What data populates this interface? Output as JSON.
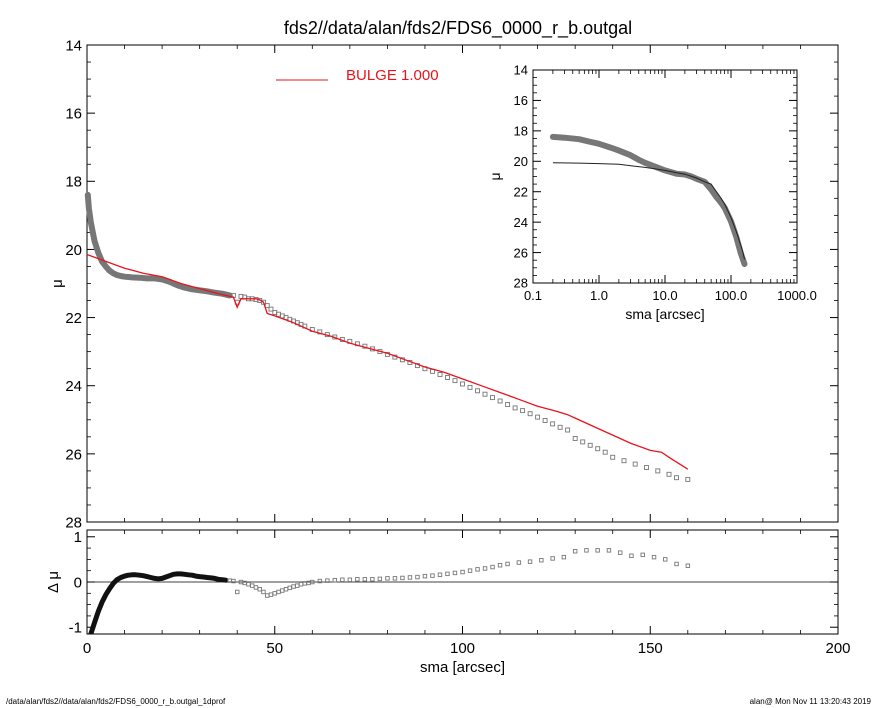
{
  "title": "fds2//data/alan/fds2/FDS6_0000_r_b.outgal",
  "footer_left": "/data/alan/fds2//data/alan/fds2/FDS6_0000_r_b.outgal_1dprof",
  "footer_right": "alan@  Mon Nov 11 13:20:43 2019",
  "colors": {
    "model": "#e8141c",
    "data": "#777777",
    "axis": "#000000"
  },
  "chart_data": [
    {
      "type": "scatter",
      "name": "main-profile",
      "xlabel": "",
      "ylabel": "μ",
      "xlim": [
        0,
        200
      ],
      "ylim": [
        28,
        14
      ],
      "xticks": [
        0,
        50,
        100,
        150,
        200
      ],
      "yticks": [
        14,
        16,
        18,
        20,
        22,
        24,
        26,
        28
      ],
      "legend": {
        "label": "BULGE  1.000",
        "placement": "top-center"
      },
      "series": [
        {
          "name": "BULGE  1.000",
          "style": "line",
          "x": [
            0,
            5,
            10,
            15,
            20,
            25,
            30,
            35,
            39,
            40,
            41,
            45,
            46,
            47,
            48,
            50,
            55,
            60,
            65,
            70,
            75,
            80,
            85,
            90,
            95,
            100,
            105,
            110,
            115,
            120,
            125,
            128,
            130,
            135,
            140,
            145,
            150,
            153,
            155,
            160
          ],
          "y": [
            20.15,
            20.35,
            20.55,
            20.7,
            20.8,
            21.0,
            21.15,
            21.3,
            21.4,
            21.7,
            21.45,
            21.45,
            21.48,
            21.55,
            21.88,
            21.95,
            22.15,
            22.4,
            22.55,
            22.75,
            22.9,
            23.05,
            23.25,
            23.45,
            23.6,
            23.8,
            24.0,
            24.2,
            24.4,
            24.6,
            24.75,
            24.85,
            24.95,
            25.2,
            25.45,
            25.7,
            25.9,
            25.95,
            26.1,
            26.45
          ]
        },
        {
          "name": "",
          "style": "dense-markers",
          "x": [
            0.2,
            0.5,
            1,
            2,
            3,
            4,
            5,
            6,
            7,
            8,
            9,
            10,
            12,
            14,
            16,
            18,
            20,
            22,
            24,
            26,
            28,
            30,
            32,
            34,
            36,
            38
          ],
          "y": [
            18.4,
            18.8,
            19.2,
            19.75,
            20.1,
            20.35,
            20.5,
            20.62,
            20.7,
            20.75,
            20.78,
            20.8,
            20.82,
            20.83,
            20.85,
            20.85,
            20.88,
            20.95,
            21.05,
            21.12,
            21.17,
            21.2,
            21.23,
            21.27,
            21.3,
            21.35
          ]
        },
        {
          "name": "",
          "style": "markers",
          "x": [
            39,
            40,
            41,
            42,
            43,
            44,
            45,
            46,
            47,
            48,
            49,
            50,
            51,
            52,
            53,
            54,
            55,
            56,
            57,
            58,
            60,
            62,
            64,
            66,
            68,
            70,
            72,
            74,
            76,
            78,
            80,
            82,
            84,
            86,
            88,
            90,
            92,
            94,
            96,
            98,
            100,
            102,
            104,
            106,
            108,
            110,
            112,
            114,
            116,
            118,
            120,
            122,
            124,
            126,
            128,
            130,
            132,
            134,
            136,
            138,
            140,
            143,
            146,
            149,
            152,
            155,
            157,
            160
          ],
          "y": [
            21.35,
            21.55,
            21.38,
            21.4,
            21.45,
            21.45,
            21.47,
            21.5,
            21.55,
            21.65,
            21.75,
            21.85,
            21.9,
            21.95,
            22.0,
            22.05,
            22.1,
            22.15,
            22.2,
            22.25,
            22.35,
            22.42,
            22.5,
            22.57,
            22.64,
            22.7,
            22.77,
            22.84,
            22.92,
            23.0,
            23.08,
            23.16,
            23.24,
            23.32,
            23.41,
            23.5,
            23.58,
            23.67,
            23.76,
            23.85,
            23.95,
            24.05,
            24.15,
            24.25,
            24.35,
            24.45,
            24.55,
            24.65,
            24.73,
            24.82,
            24.92,
            25.02,
            25.12,
            25.22,
            25.3,
            25.55,
            25.65,
            25.75,
            25.85,
            25.95,
            26.1,
            26.2,
            26.3,
            26.4,
            26.5,
            26.6,
            26.7,
            26.75
          ]
        }
      ]
    },
    {
      "type": "scatter",
      "name": "inset-log-profile",
      "xlabel": "sma [arcsec]",
      "ylabel": "μ",
      "xscale": "log",
      "xlim": [
        0.1,
        1000
      ],
      "ylim": [
        28,
        14
      ],
      "xtick_labels": [
        "0.1",
        "1.0",
        "10.0",
        "100.0",
        "1000.0"
      ],
      "yticks": [
        14,
        16,
        18,
        20,
        22,
        24,
        26,
        28
      ],
      "series": [
        {
          "name": "",
          "style": "line",
          "x": [
            0.2,
            0.5,
            1,
            2,
            5,
            10,
            15,
            20,
            30,
            40,
            50,
            60,
            70,
            80,
            100,
            120,
            150,
            160
          ],
          "y": [
            20.1,
            20.12,
            20.15,
            20.2,
            20.4,
            20.6,
            20.75,
            20.85,
            21.1,
            21.35,
            21.5,
            22.0,
            22.4,
            22.8,
            23.7,
            24.6,
            25.9,
            26.45
          ]
        },
        {
          "name": "",
          "style": "dense-markers",
          "x": [
            0.2,
            0.3,
            0.5,
            0.7,
            1,
            1.5,
            2,
            3,
            4,
            5,
            7,
            10,
            15,
            20,
            25,
            30,
            40,
            50,
            60,
            70,
            80,
            100,
            120,
            140,
            160
          ],
          "y": [
            18.4,
            18.45,
            18.55,
            18.7,
            18.85,
            19.1,
            19.3,
            19.6,
            19.9,
            20.1,
            20.35,
            20.6,
            20.82,
            20.87,
            21.0,
            21.15,
            21.35,
            21.85,
            22.35,
            22.7,
            23.05,
            23.95,
            24.95,
            26.0,
            26.75
          ]
        }
      ]
    },
    {
      "type": "scatter",
      "name": "residuals",
      "xlabel": "sma [arcsec]",
      "ylabel": "Δ μ",
      "xlim": [
        0,
        200
      ],
      "ylim": [
        -1.15,
        1.15
      ],
      "xticks": [
        0,
        50,
        100,
        150,
        200
      ],
      "yticks": [
        -1,
        0,
        1
      ],
      "series": [
        {
          "name": "",
          "style": "dense-markers",
          "x": [
            1,
            2,
            3,
            4,
            5,
            6,
            7,
            8,
            9,
            10,
            11,
            12,
            13,
            14,
            15,
            16,
            17,
            18,
            19,
            20,
            21,
            22,
            23,
            24,
            25,
            26,
            27,
            28,
            29,
            30,
            31,
            32,
            33,
            34,
            35,
            36,
            37
          ],
          "y": [
            -1.15,
            -0.9,
            -0.65,
            -0.45,
            -0.28,
            -0.15,
            -0.03,
            0.05,
            0.1,
            0.13,
            0.15,
            0.16,
            0.16,
            0.15,
            0.14,
            0.12,
            0.1,
            0.08,
            0.07,
            0.08,
            0.11,
            0.14,
            0.17,
            0.18,
            0.18,
            0.17,
            0.16,
            0.15,
            0.13,
            0.12,
            0.11,
            0.1,
            0.09,
            0.08,
            0.06,
            0.05,
            0.04
          ]
        },
        {
          "name": "",
          "style": "markers",
          "x": [
            38,
            39,
            40,
            41,
            42,
            43,
            44,
            45,
            46,
            47,
            48,
            49,
            50,
            51,
            52,
            53,
            54,
            55,
            56,
            57,
            58,
            59,
            60,
            62,
            64,
            66,
            68,
            70,
            72,
            74,
            76,
            78,
            80,
            82,
            84,
            86,
            88,
            90,
            92,
            94,
            96,
            98,
            100,
            102,
            104,
            106,
            108,
            110,
            112,
            115,
            118,
            121,
            124,
            127,
            130,
            133,
            136,
            139,
            142,
            145,
            148,
            151,
            154,
            157,
            160
          ],
          "y": [
            0.03,
            0.02,
            -0.22,
            0.0,
            -0.02,
            -0.05,
            -0.08,
            -0.12,
            -0.16,
            -0.22,
            -0.3,
            -0.28,
            -0.25,
            -0.22,
            -0.19,
            -0.16,
            -0.13,
            -0.1,
            -0.08,
            -0.05,
            -0.03,
            -0.02,
            0.0,
            0.02,
            0.03,
            0.04,
            0.05,
            0.05,
            0.06,
            0.06,
            0.06,
            0.07,
            0.08,
            0.08,
            0.09,
            0.1,
            0.11,
            0.13,
            0.14,
            0.16,
            0.18,
            0.2,
            0.22,
            0.25,
            0.28,
            0.3,
            0.33,
            0.37,
            0.4,
            0.43,
            0.45,
            0.48,
            0.52,
            0.55,
            0.68,
            0.7,
            0.7,
            0.7,
            0.65,
            0.58,
            0.6,
            0.55,
            0.5,
            0.4,
            0.36
          ]
        }
      ]
    }
  ]
}
